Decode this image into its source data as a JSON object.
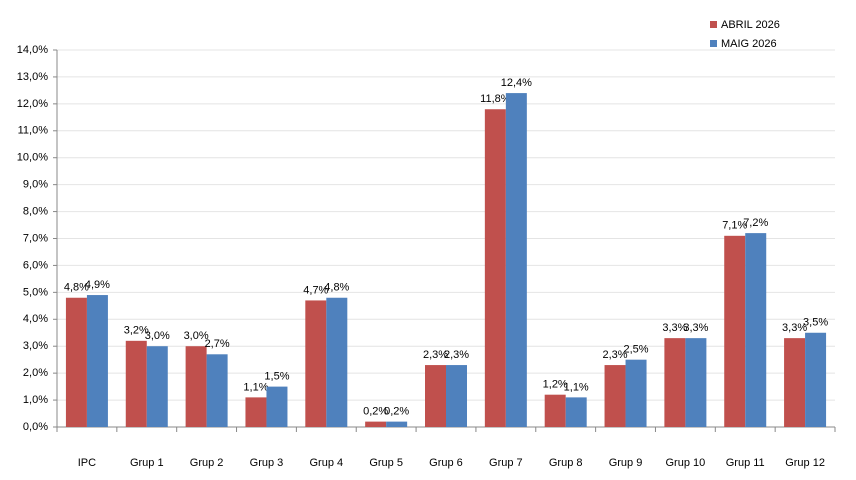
{
  "chart_data": {
    "type": "bar",
    "categories": [
      "IPC",
      "Grup 1",
      "Grup 2",
      "Grup 3",
      "Grup 4",
      "Grup 5",
      "Grup 6",
      "Grup 7",
      "Grup 8",
      "Grup 9",
      "Grup 10",
      "Grup 11",
      "Grup 12"
    ],
    "series": [
      {
        "name": "ABRIL 2026",
        "color": "#c0504d",
        "values": [
          4.8,
          3.2,
          3.0,
          1.1,
          4.7,
          0.2,
          2.3,
          11.8,
          1.2,
          2.3,
          3.3,
          7.1,
          3.3
        ],
        "value_labels": [
          "4,8%",
          "3,2%",
          "3,0%",
          "1,1%",
          "4,7%",
          "0,2%",
          "2,3%",
          "11,8%",
          "1,2%",
          "2,3%",
          "3,3%",
          "7,1%",
          "3,3%"
        ]
      },
      {
        "name": "MAIG 2026",
        "color": "#4f81bd",
        "values": [
          4.9,
          3.0,
          2.7,
          1.5,
          4.8,
          0.2,
          2.3,
          12.4,
          1.1,
          2.5,
          3.3,
          7.2,
          3.5
        ],
        "value_labels": [
          "4,9%",
          "3,0%",
          "2,7%",
          "1,5%",
          "4,8%",
          "0,2%",
          "2,3%",
          "12,4%",
          "1,1%",
          "2,5%",
          "3,3%",
          "7,2%",
          "3,5%"
        ]
      }
    ],
    "ylim": [
      0,
      14
    ],
    "yticks": [
      {
        "value": 0,
        "label": "0,0%"
      },
      {
        "value": 1,
        "label": "1,0%"
      },
      {
        "value": 2,
        "label": "2,0%"
      },
      {
        "value": 3,
        "label": "3,0%"
      },
      {
        "value": 4,
        "label": "4,0%"
      },
      {
        "value": 5,
        "label": "5,0%"
      },
      {
        "value": 6,
        "label": "6,0%"
      },
      {
        "value": 7,
        "label": "7,0%"
      },
      {
        "value": 8,
        "label": "8,0%"
      },
      {
        "value": 9,
        "label": "9,0%"
      },
      {
        "value": 10,
        "label": "10,0%"
      },
      {
        "value": 11,
        "label": "11,0%"
      },
      {
        "value": 12,
        "label": "12,0%"
      },
      {
        "value": 13,
        "label": "13,0%"
      },
      {
        "value": 14,
        "label": "14,0%"
      }
    ],
    "grid": true,
    "legend": "top-right"
  }
}
